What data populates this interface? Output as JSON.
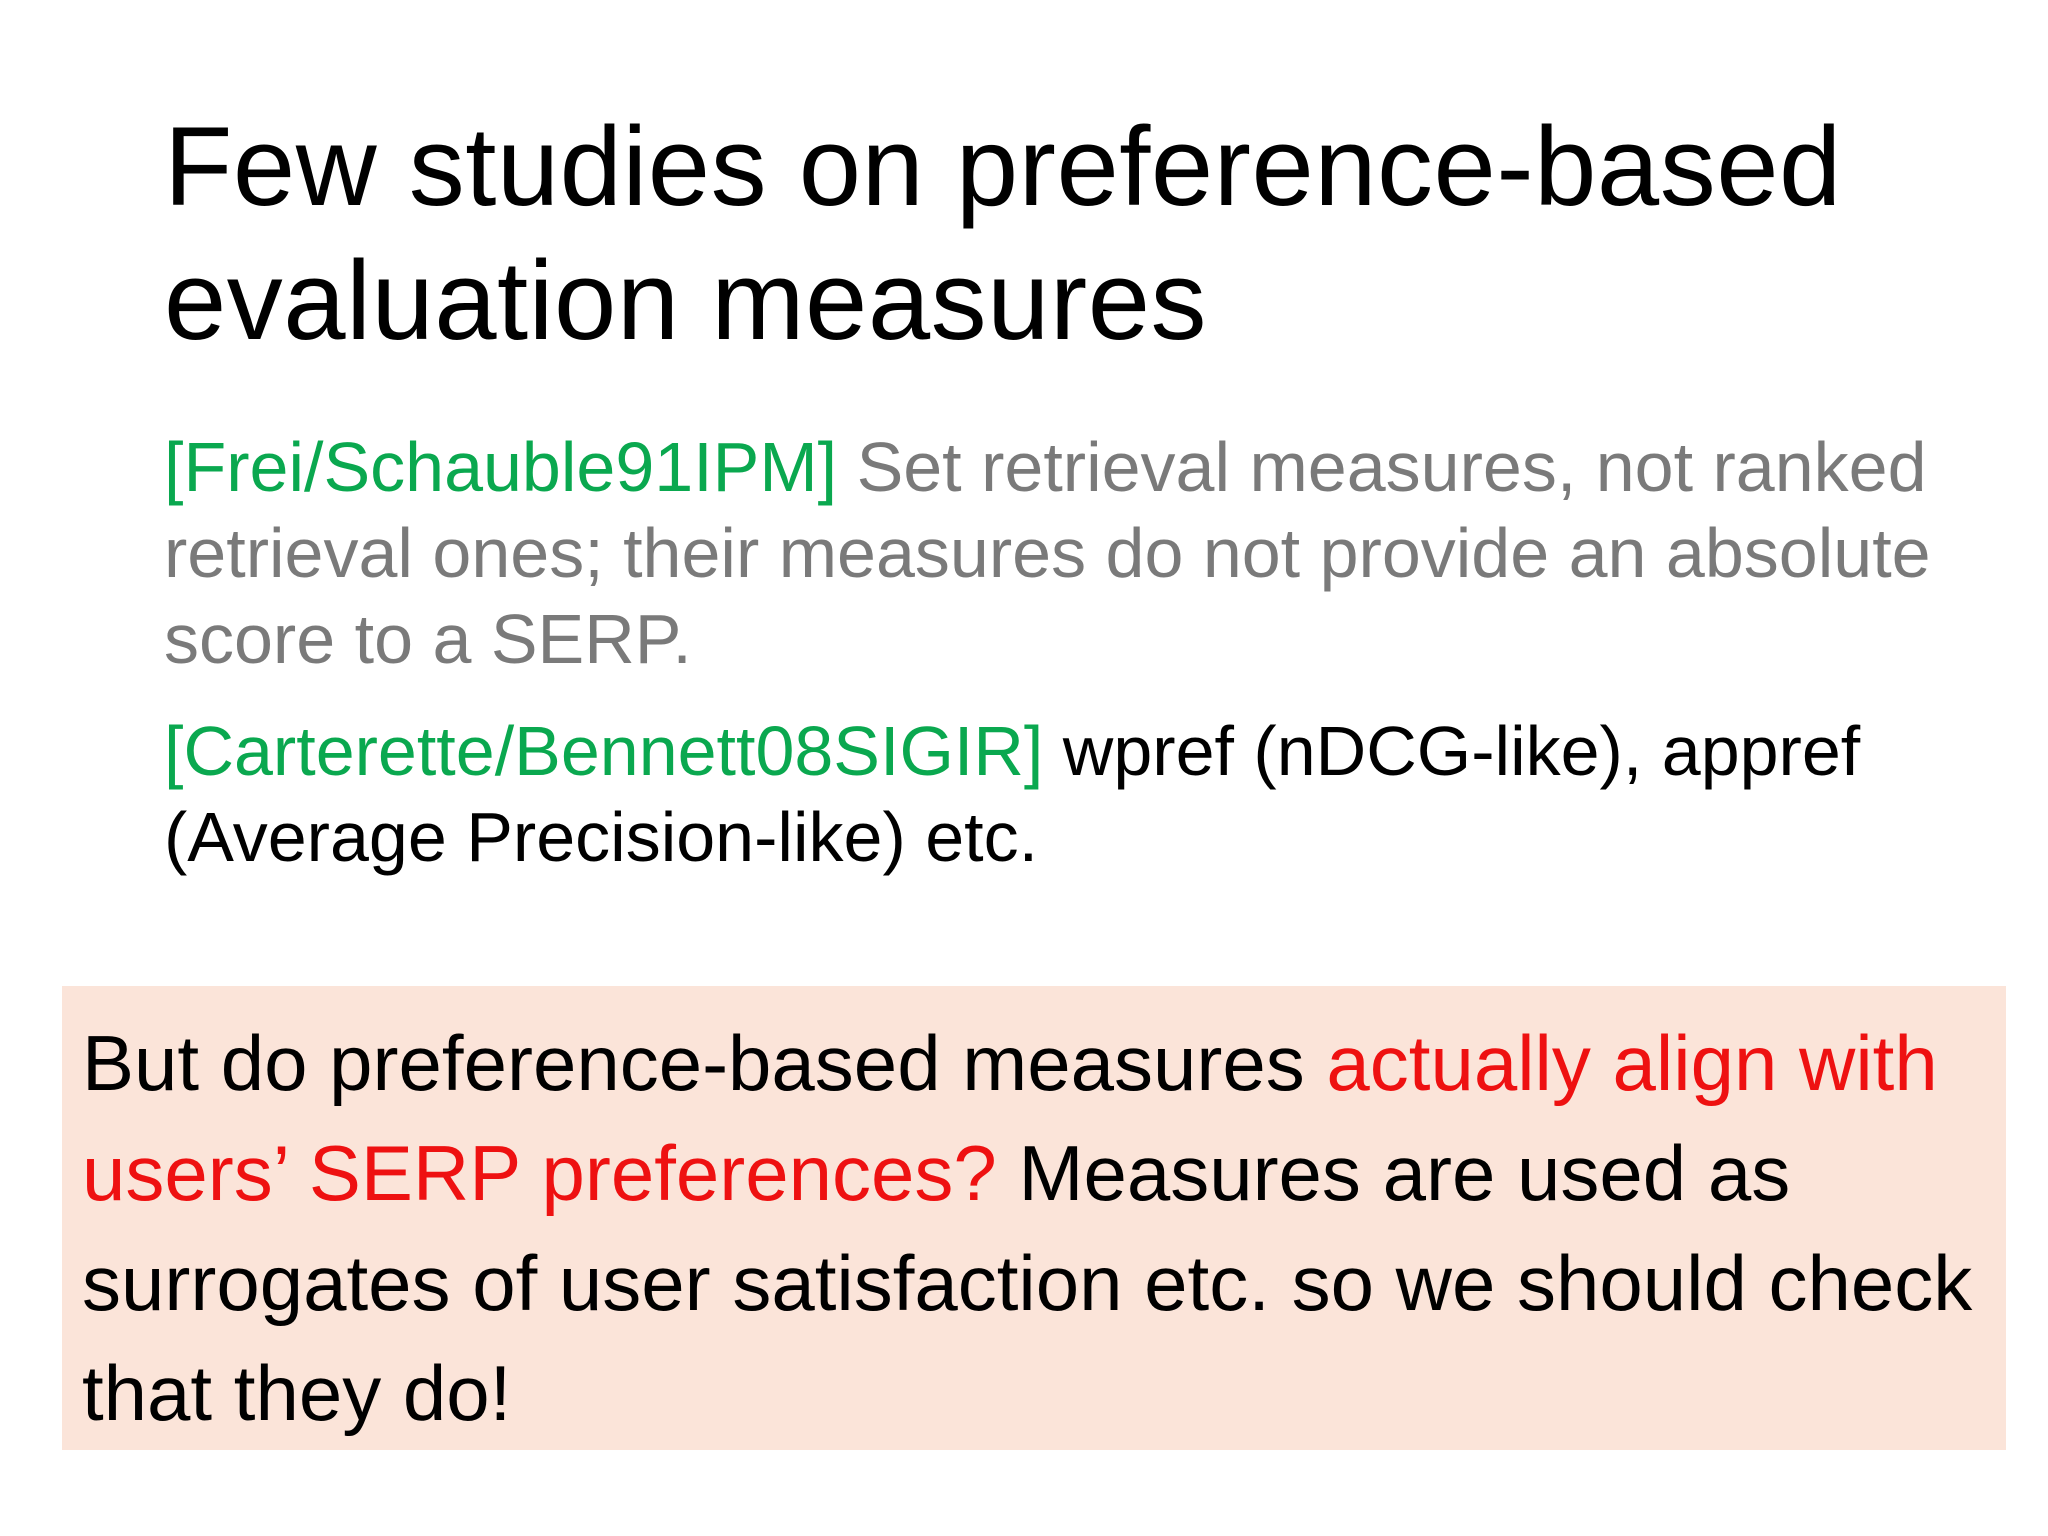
{
  "slide": {
    "title_line1": "Few studies on preference-based",
    "title_line2": "evaluation measures",
    "refs": [
      {
        "tag": "[Frei/Schauble91IPM]",
        "text": "Set retrieval measures, not ranked retrieval ones; their measures do not provide an absolute score to a SERP."
      },
      {
        "tag": "[Carterette/Bennett08SIGIR]",
        "text": "wpref (nDCG-like), appref (Average Precision-like) etc."
      }
    ],
    "callout": {
      "part1": "But do preference-based measures ",
      "highlight": "actually align with users’ SERP preferences?",
      "part2": " Measures are used as surrogates of user satisfaction etc. so we should check that they do!"
    }
  },
  "colors": {
    "reference_tag": "#0aa84f",
    "secondary_text": "#7a7a7a",
    "highlight": "#ee1111",
    "callout_background": "#fbe4d9"
  }
}
